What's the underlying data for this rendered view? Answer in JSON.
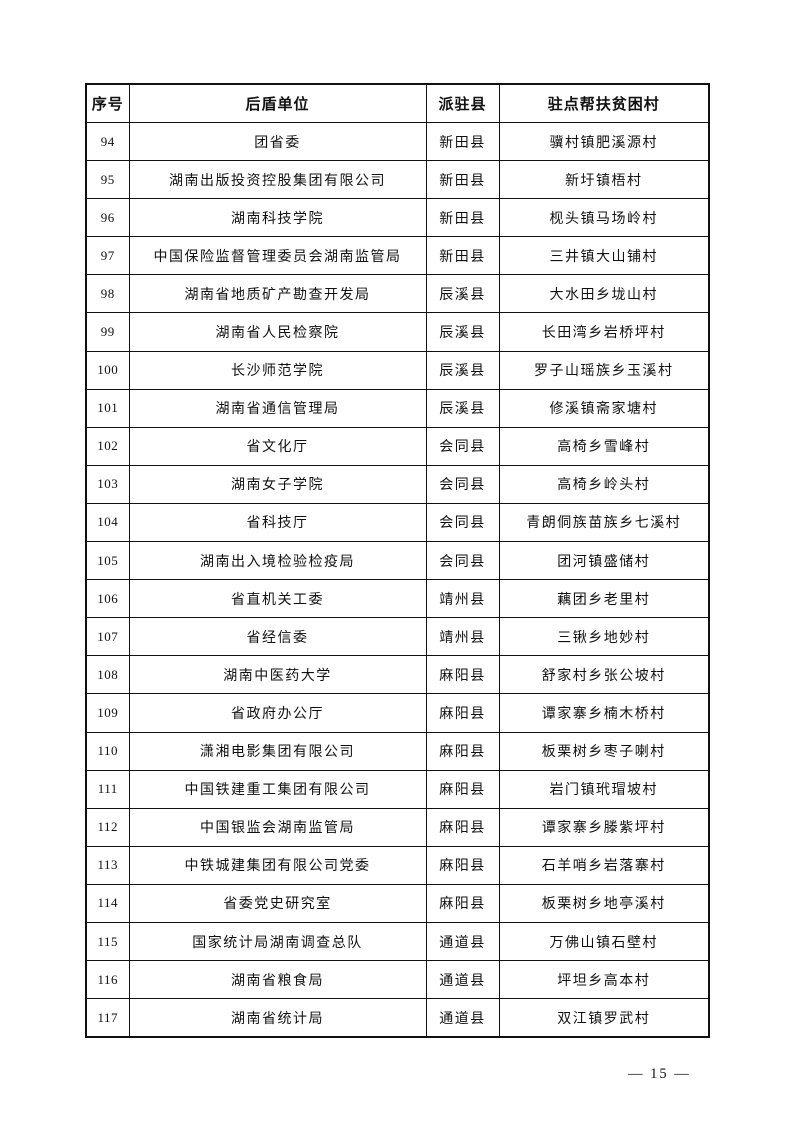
{
  "page": {
    "footer_page_number": "— 15 —"
  },
  "table": {
    "headers": [
      "序号",
      "后盾单位",
      "派驻县",
      "驻点帮扶贫困村"
    ],
    "rows": [
      {
        "no": "94",
        "unit": "团省委",
        "county": "新田县",
        "village": "骥村镇肥溪源村"
      },
      {
        "no": "95",
        "unit": "湖南出版投资控股集团有限公司",
        "county": "新田县",
        "village": "新圩镇梧村"
      },
      {
        "no": "96",
        "unit": "湖南科技学院",
        "county": "新田县",
        "village": "枧头镇马场岭村"
      },
      {
        "no": "97",
        "unit": "中国保险监督管理委员会湖南监管局",
        "county": "新田县",
        "village": "三井镇大山铺村"
      },
      {
        "no": "98",
        "unit": "湖南省地质矿产勘查开发局",
        "county": "辰溪县",
        "village": "大水田乡垅山村"
      },
      {
        "no": "99",
        "unit": "湖南省人民检察院",
        "county": "辰溪县",
        "village": "长田湾乡岩桥坪村"
      },
      {
        "no": "100",
        "unit": "长沙师范学院",
        "county": "辰溪县",
        "village": "罗子山瑶族乡玉溪村"
      },
      {
        "no": "101",
        "unit": "湖南省通信管理局",
        "county": "辰溪县",
        "village": "修溪镇斋家塘村"
      },
      {
        "no": "102",
        "unit": "省文化厅",
        "county": "会同县",
        "village": "高椅乡雪峰村"
      },
      {
        "no": "103",
        "unit": "湖南女子学院",
        "county": "会同县",
        "village": "高椅乡岭头村"
      },
      {
        "no": "104",
        "unit": "省科技厅",
        "county": "会同县",
        "village": "青朗侗族苗族乡七溪村"
      },
      {
        "no": "105",
        "unit": "湖南出入境检验检疫局",
        "county": "会同县",
        "village": "团河镇盛储村"
      },
      {
        "no": "106",
        "unit": "省直机关工委",
        "county": "靖州县",
        "village": "藕团乡老里村"
      },
      {
        "no": "107",
        "unit": "省经信委",
        "county": "靖州县",
        "village": "三锹乡地妙村"
      },
      {
        "no": "108",
        "unit": "湖南中医药大学",
        "county": "麻阳县",
        "village": "舒家村乡张公坡村"
      },
      {
        "no": "109",
        "unit": "省政府办公厅",
        "county": "麻阳县",
        "village": "谭家寨乡楠木桥村"
      },
      {
        "no": "110",
        "unit": "潇湘电影集团有限公司",
        "county": "麻阳县",
        "village": "板栗树乡枣子喇村"
      },
      {
        "no": "111",
        "unit": "中国铁建重工集团有限公司",
        "county": "麻阳县",
        "village": "岩门镇玳瑁坡村"
      },
      {
        "no": "112",
        "unit": "中国银监会湖南监管局",
        "county": "麻阳县",
        "village": "谭家寨乡滕紫坪村"
      },
      {
        "no": "113",
        "unit": "中铁城建集团有限公司党委",
        "county": "麻阳县",
        "village": "石羊哨乡岩落寨村"
      },
      {
        "no": "114",
        "unit": "省委党史研究室",
        "county": "麻阳县",
        "village": "板栗树乡地亭溪村"
      },
      {
        "no": "115",
        "unit": "国家统计局湖南调查总队",
        "county": "通道县",
        "village": "万佛山镇石壁村"
      },
      {
        "no": "116",
        "unit": "湖南省粮食局",
        "county": "通道县",
        "village": "坪坦乡高本村"
      },
      {
        "no": "117",
        "unit": "湖南省统计局",
        "county": "通道县",
        "village": "双江镇罗武村"
      }
    ]
  }
}
